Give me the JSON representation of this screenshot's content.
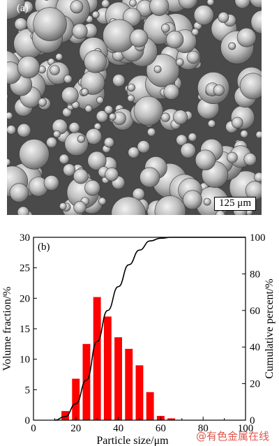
{
  "figure_a": {
    "panel_label": "(a)",
    "scale_bar": "125 μm"
  },
  "chart_data": {
    "type": "bar",
    "panel_label": "(b)",
    "xlabel": "Particle size/μm",
    "ylabel_left": "Volume fraction/%",
    "ylabel_right": "Cumulative percent/%",
    "xlim": [
      0,
      100
    ],
    "ylim_left": [
      0,
      30
    ],
    "ylim_right": [
      0,
      100
    ],
    "x_ticks": [
      0,
      20,
      40,
      60,
      80,
      100
    ],
    "y_ticks_left": [
      0,
      5,
      10,
      15,
      20,
      25,
      30
    ],
    "y_ticks_right": [
      0,
      20,
      40,
      60,
      80,
      100
    ],
    "bar_color": "#ff0000",
    "bars": [
      {
        "x": 15,
        "value": 1.5
      },
      {
        "x": 20,
        "value": 6.8
      },
      {
        "x": 25,
        "value": 12.5
      },
      {
        "x": 30,
        "value": 20.2
      },
      {
        "x": 35,
        "value": 17.0
      },
      {
        "x": 40,
        "value": 13.6
      },
      {
        "x": 45,
        "value": 11.7
      },
      {
        "x": 50,
        "value": 9.0
      },
      {
        "x": 55,
        "value": 4.6
      },
      {
        "x": 60,
        "value": 0.7
      },
      {
        "x": 65,
        "value": 0.3
      }
    ],
    "cumulative": {
      "x": [
        10,
        15,
        20,
        25,
        30,
        35,
        40,
        45,
        50,
        55,
        60,
        65,
        70,
        80,
        90,
        100
      ],
      "y": [
        0,
        2,
        9,
        22,
        43,
        60,
        73,
        85,
        93,
        98,
        99.5,
        100,
        100,
        100,
        100,
        100
      ]
    }
  },
  "watermark": "@有色金属在线"
}
